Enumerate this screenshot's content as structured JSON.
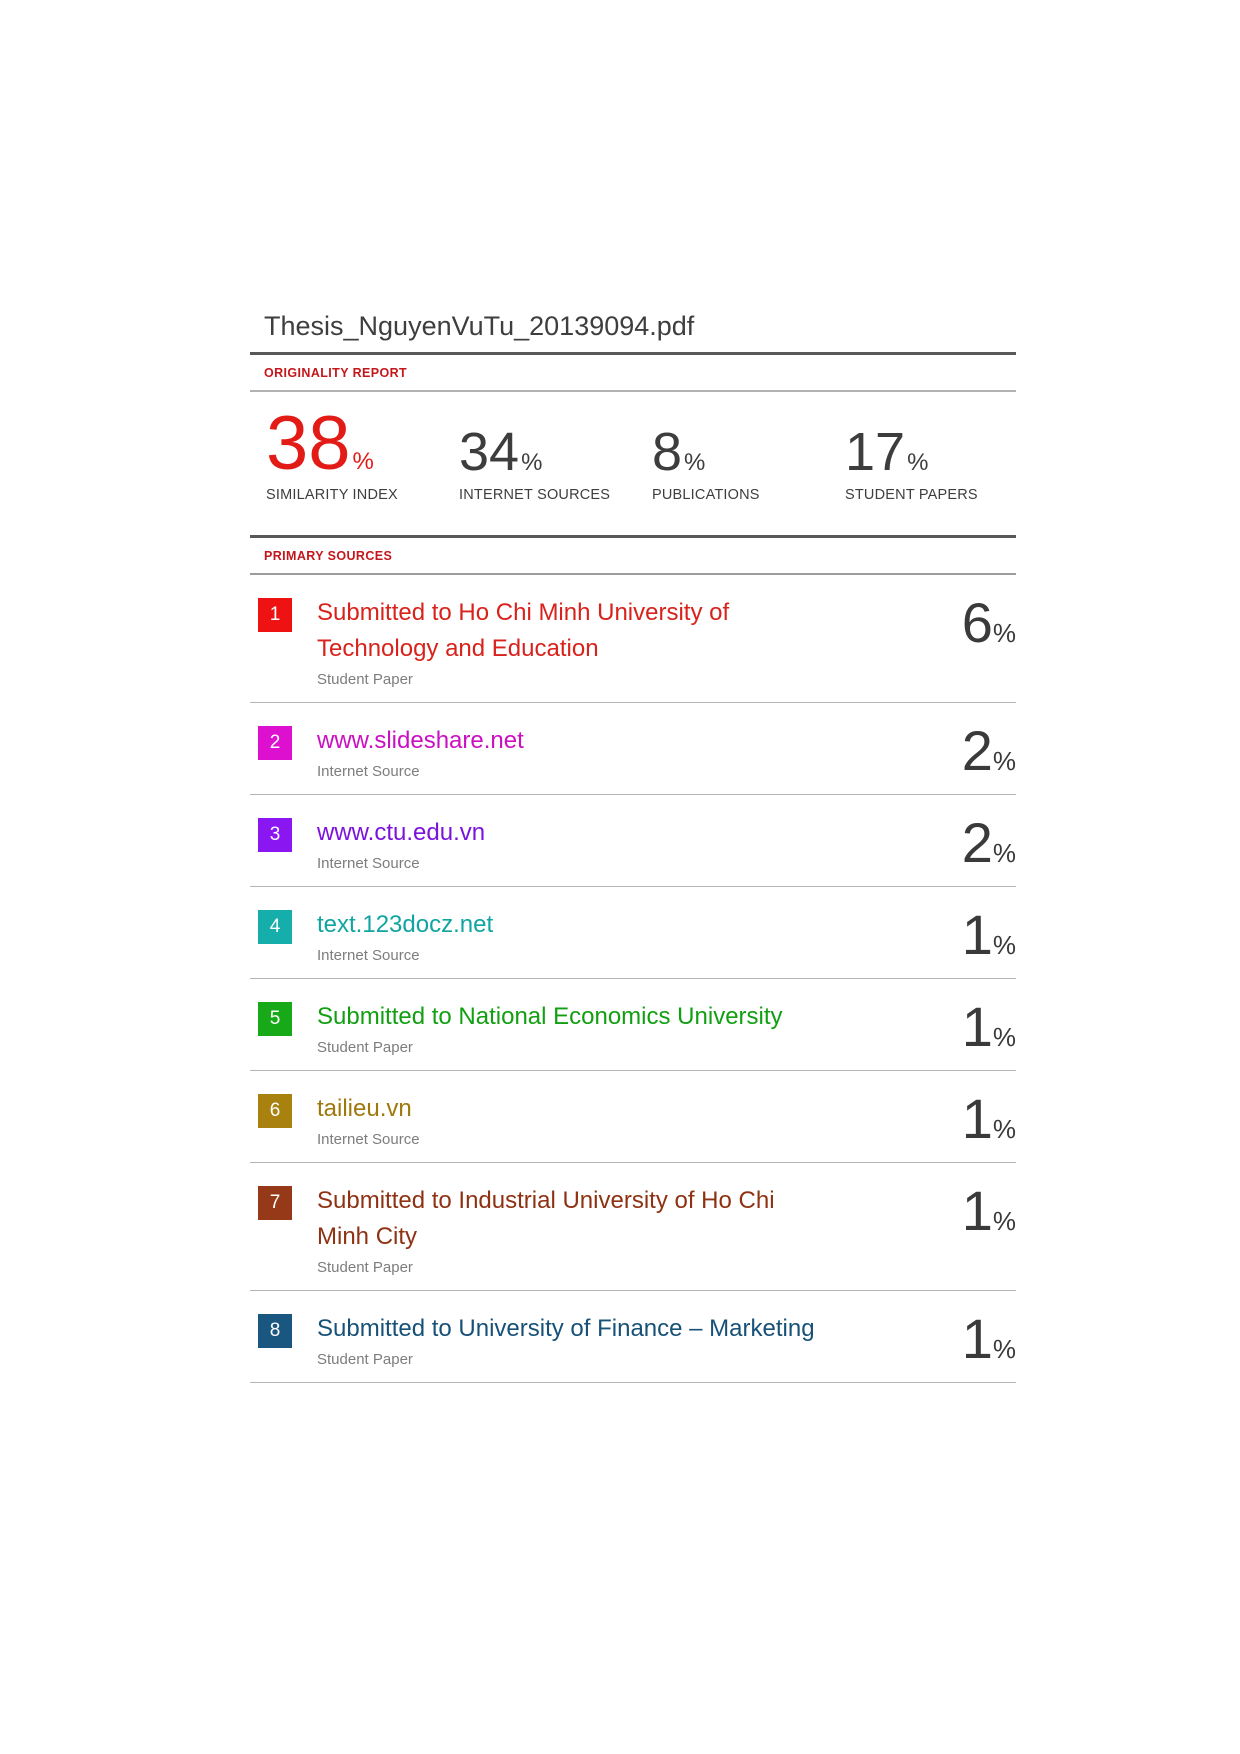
{
  "document": {
    "title": "Thesis_NguyenVuTu_20139094.pdf"
  },
  "originality": {
    "section_label": "ORIGINALITY REPORT",
    "stats": [
      {
        "value": "38",
        "unit": "%",
        "label": "SIMILARITY INDEX",
        "color": "#e31b17"
      },
      {
        "value": "34",
        "unit": "%",
        "label": "INTERNET SOURCES",
        "color": "#3d3d3d"
      },
      {
        "value": "8",
        "unit": "%",
        "label": "PUBLICATIONS",
        "color": "#3d3d3d"
      },
      {
        "value": "17",
        "unit": "%",
        "label": "STUDENT PAPERS",
        "color": "#3d3d3d"
      }
    ]
  },
  "sources": {
    "section_label": "PRIMARY SOURCES",
    "items": [
      {
        "index": "1",
        "title": "Submitted to Ho Chi Minh University of Technology and Education",
        "type": "Student Paper",
        "percent": "6",
        "unit": "%",
        "badge_color": "#ee1212",
        "title_color": "#d8221b"
      },
      {
        "index": "2",
        "title": "www.slideshare.net",
        "type": "Internet Source",
        "percent": "2",
        "unit": "%",
        "badge_color": "#de10cf",
        "title_color": "#cb10c2"
      },
      {
        "index": "3",
        "title": "www.ctu.edu.vn",
        "type": "Internet Source",
        "percent": "2",
        "unit": "%",
        "badge_color": "#8a16f2",
        "title_color": "#7b13de"
      },
      {
        "index": "4",
        "title": "text.123docz.net",
        "type": "Internet Source",
        "percent": "1",
        "unit": "%",
        "badge_color": "#15aeab",
        "title_color": "#10a5a1"
      },
      {
        "index": "5",
        "title": "Submitted to National Economics University",
        "type": "Student Paper",
        "percent": "1",
        "unit": "%",
        "badge_color": "#17a917",
        "title_color": "#12a012"
      },
      {
        "index": "6",
        "title": "tailieu.vn",
        "type": "Internet Source",
        "percent": "1",
        "unit": "%",
        "badge_color": "#a8810f",
        "title_color": "#9f780c"
      },
      {
        "index": "7",
        "title": "Submitted to Industrial University of Ho Chi Minh City",
        "type": "Student Paper",
        "percent": "1",
        "unit": "%",
        "badge_color": "#963918",
        "title_color": "#8e3213"
      },
      {
        "index": "8",
        "title": "Submitted to University of Finance – Marketing",
        "type": "Student Paper",
        "percent": "1",
        "unit": "%",
        "badge_color": "#1a5780",
        "title_color": "#175177"
      }
    ]
  },
  "colors": {
    "section_label": "#c4171c",
    "separator_dark": "#57585a",
    "separator_light": "#b5b5b7",
    "percent_text": "#3a3a3a",
    "type_label_text": "#7d7d7d",
    "document_title_text": "#3e3e40"
  }
}
